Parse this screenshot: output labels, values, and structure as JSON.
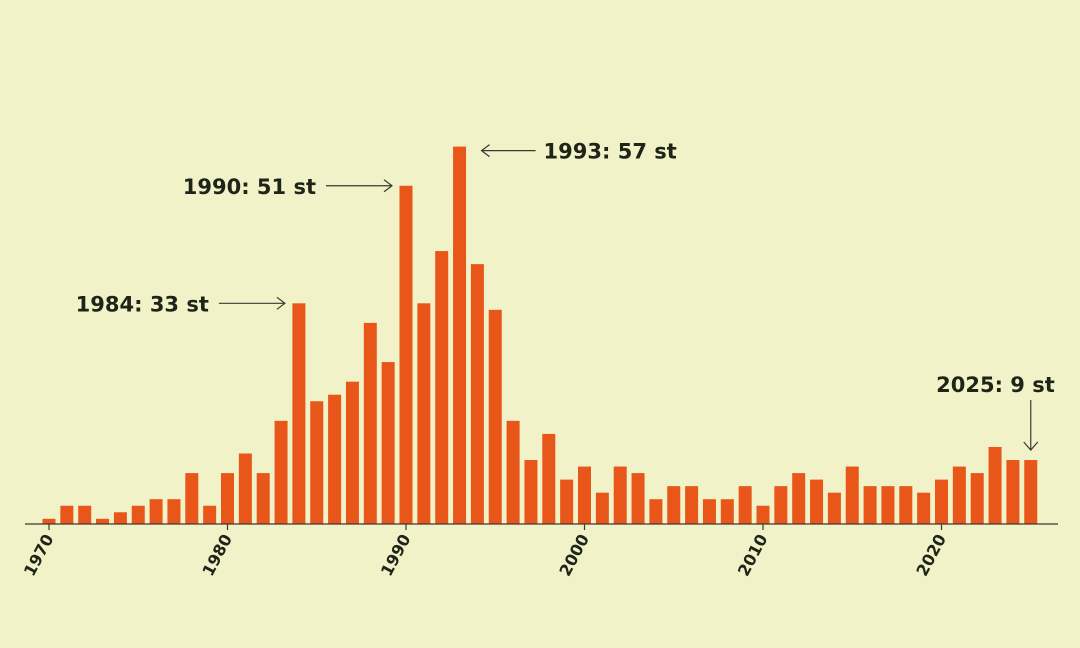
{
  "chart_data": {
    "type": "bar",
    "title": "",
    "xlabel": "",
    "ylabel": "",
    "unit": "st",
    "bar_color": "#e8561a",
    "background": "#f1f2c8",
    "x": [
      1970,
      1971,
      1972,
      1973,
      1974,
      1975,
      1976,
      1977,
      1978,
      1979,
      1980,
      1981,
      1982,
      1983,
      1984,
      1985,
      1986,
      1987,
      1988,
      1989,
      1990,
      1991,
      1992,
      1993,
      1994,
      1995,
      1996,
      1997,
      1998,
      1999,
      2000,
      2001,
      2002,
      2003,
      2004,
      2005,
      2006,
      2007,
      2008,
      2009,
      2010,
      2011,
      2012,
      2013,
      2014,
      2015,
      2016,
      2017,
      2018,
      2019,
      2020,
      2021,
      2022,
      2023,
      2024,
      2025
    ],
    "values": [
      0,
      2,
      2,
      0,
      1,
      2,
      3,
      3,
      7,
      2,
      7,
      10,
      7,
      15,
      33,
      18,
      19,
      21,
      30,
      24,
      51,
      33,
      41,
      57,
      39,
      32,
      15,
      9,
      13,
      6,
      8,
      4,
      8,
      7,
      3,
      5,
      5,
      3,
      3,
      5,
      2,
      5,
      7,
      6,
      4,
      8,
      5,
      5,
      5,
      4,
      6,
      8,
      7,
      11,
      9,
      9
    ],
    "ylim": [
      0,
      57
    ],
    "grid": false,
    "tick_labels": [
      "1970",
      "1980",
      "1990",
      "2000",
      "2010",
      "2020"
    ],
    "tick_years": [
      1970,
      1980,
      1990,
      2000,
      2010,
      2020
    ],
    "annotations": [
      {
        "year": 1984,
        "text": "1984: 33 st",
        "side": "left"
      },
      {
        "year": 1990,
        "text": "1990: 51 st",
        "side": "left"
      },
      {
        "year": 1993,
        "text": "1993: 57 st",
        "side": "right"
      },
      {
        "year": 2025,
        "text": "2025: 9 st",
        "side": "top"
      }
    ]
  }
}
